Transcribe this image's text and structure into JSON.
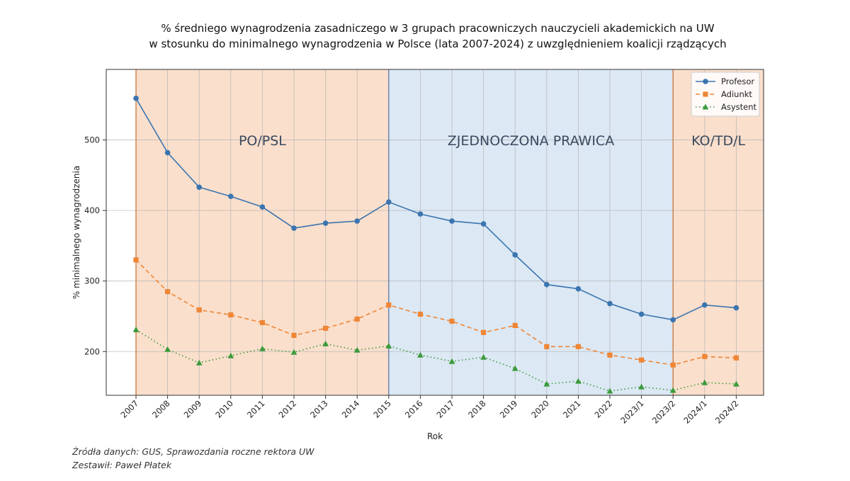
{
  "chart_data": {
    "type": "line",
    "title_lines": [
      "% średniego wynagrodzenia zasadniczego w 3 grupach pracowniczych nauczycieli akademickich na UW",
      "w stosunku do minimalnego wynagrodzenia w Polsce (lata 2007-2024) z uwzględnieniem koalicji rządzących"
    ],
    "xlabel": "Rok",
    "ylabel": "% minimalnego wynagrodzenia",
    "categories": [
      "2007",
      "2008",
      "2009",
      "2010",
      "2011",
      "2012",
      "2013",
      "2014",
      "2015",
      "2016",
      "2017",
      "2018",
      "2019",
      "2020",
      "2021",
      "2022",
      "2023/1",
      "2023/2",
      "2024/1",
      "2024/2"
    ],
    "ylim": [
      138,
      600
    ],
    "yticks": [
      200,
      300,
      400,
      500
    ],
    "grid": true,
    "legend_position": "top-right",
    "series": [
      {
        "name": "Profesor",
        "color": "#3b75af",
        "marker": "circle",
        "linestyle": "solid",
        "values": [
          559,
          482,
          433,
          420,
          405,
          375,
          382,
          385,
          412,
          395,
          385,
          381,
          337,
          295,
          289,
          268,
          253,
          245,
          266,
          262
        ]
      },
      {
        "name": "Adiunkt",
        "color": "#ef8636",
        "marker": "square",
        "linestyle": "dashed",
        "values": [
          330,
          285,
          259,
          252,
          241,
          223,
          233,
          246,
          266,
          253,
          243,
          227,
          237,
          207,
          207,
          195,
          188,
          181,
          193,
          191
        ]
      },
      {
        "name": "Asystent",
        "color": "#3b9a3b",
        "marker": "triangle",
        "linestyle": "dotted",
        "values": [
          231,
          203,
          184,
          194,
          204,
          199,
          211,
          202,
          208,
          195,
          186,
          192,
          176,
          154,
          158,
          144,
          150,
          145,
          156,
          154
        ]
      }
    ],
    "regions": [
      {
        "label": "PO/PSL",
        "from": "2007",
        "to": "2015",
        "color": "#fadfcc"
      },
      {
        "label": "ZJEDNOCZONA PRAWICA",
        "from": "2015",
        "to": "2023/2",
        "color": "#dce8f4"
      },
      {
        "label": "KO/TD/L",
        "from": "2023/2",
        "to": "end",
        "color": "#fadfcc"
      }
    ]
  },
  "source": {
    "line1": "Źródła danych: GUS, Sprawozdania roczne rektora UW",
    "line2": "Zestawił: Paweł Płatek"
  }
}
